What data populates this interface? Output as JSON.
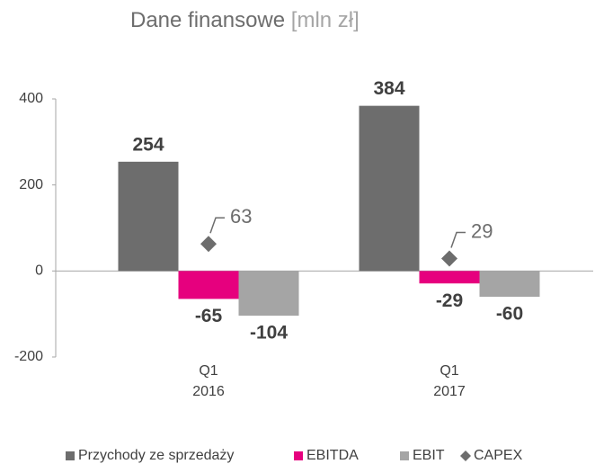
{
  "chart_data": {
    "type": "bar",
    "title": "Dane finansowe",
    "title_unit": "[mln zł]",
    "categories": [
      [
        "Q1",
        "2016"
      ],
      [
        "Q1",
        "2017"
      ]
    ],
    "series": [
      {
        "name": "Przychody ze sprzedaży",
        "color": "#6d6d6d",
        "type": "bar",
        "values": [
          254,
          384
        ]
      },
      {
        "name": "EBITDA",
        "color": "#e6007e",
        "type": "bar",
        "values": [
          -65,
          -29
        ]
      },
      {
        "name": "EBIT",
        "color": "#a5a5a5",
        "type": "bar",
        "values": [
          -104,
          -60
        ]
      },
      {
        "name": "CAPEX",
        "color": "#6d6d6d",
        "type": "scatter",
        "values": [
          63,
          29
        ]
      }
    ],
    "ylim": [
      -200,
      400
    ],
    "yticks": [
      -200,
      0,
      200,
      400
    ],
    "grid": false,
    "legend": "bottom"
  }
}
